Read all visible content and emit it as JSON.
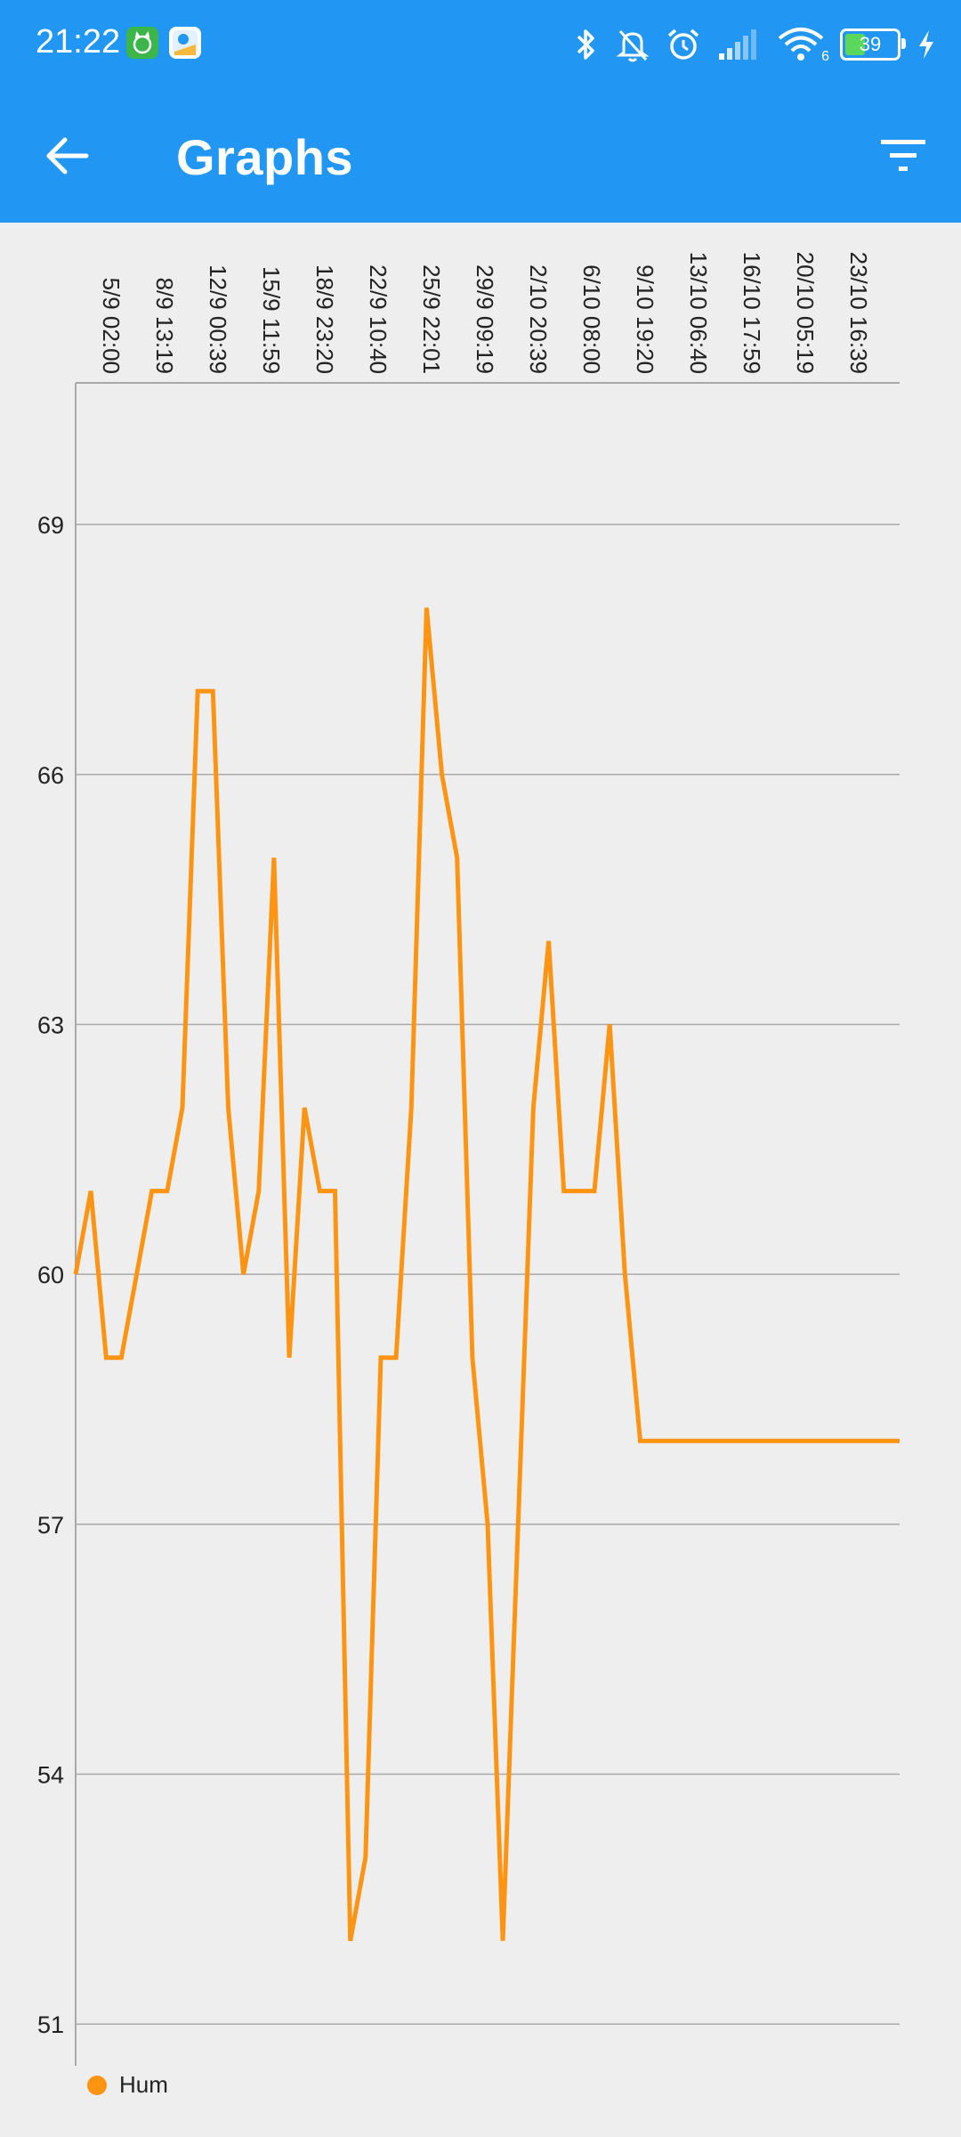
{
  "status_bar": {
    "time": "21:22",
    "icons": [
      "cat-app-icon",
      "maps-app-icon",
      "bluetooth-icon",
      "bell-off-icon",
      "alarm-icon",
      "signal-icon",
      "wifi-icon",
      "battery-icon",
      "charging-icon"
    ],
    "battery_level": "39",
    "wifi_label": "6"
  },
  "app_bar": {
    "title": "Graphs",
    "back_icon": "arrow-back-icon",
    "filter_icon": "filter-icon"
  },
  "colors": {
    "primary": "#2196F3",
    "series": "#FF9312",
    "background": "#EEEEEE",
    "grid": "#A9A9A9"
  },
  "chart_data": {
    "type": "line",
    "title": "",
    "xlabel": "",
    "ylabel": "",
    "x_tick_labels": [
      "5/9 02:00",
      "8/9 13:19",
      "12/9 00:39",
      "15/9 11:59",
      "18/9 23:20",
      "22/9 10:40",
      "25/9 22:01",
      "29/9 09:19",
      "2/10 20:39",
      "6/10 08:00",
      "9/10 19:20",
      "13/10 06:40",
      "16/10 17:59",
      "20/10 05:19",
      "23/10 16:39"
    ],
    "y_ticks": [
      51,
      54,
      57,
      60,
      63,
      66,
      69
    ],
    "ylim": [
      50.5,
      70.7
    ],
    "grid": true,
    "legend_position": "bottom-left",
    "series": [
      {
        "name": "Hum",
        "values": [
          60,
          61,
          59,
          59,
          60,
          61,
          61,
          62,
          67,
          67,
          62,
          60,
          61,
          65,
          59,
          62,
          61,
          61,
          52,
          53,
          59,
          59,
          62,
          68,
          66,
          65,
          59,
          57,
          52,
          57,
          62,
          64,
          61,
          61,
          61,
          63,
          60,
          58,
          58,
          58,
          58,
          58,
          58,
          58,
          58,
          58,
          58,
          58,
          58,
          58,
          58,
          58,
          58,
          58,
          58
        ]
      }
    ]
  }
}
